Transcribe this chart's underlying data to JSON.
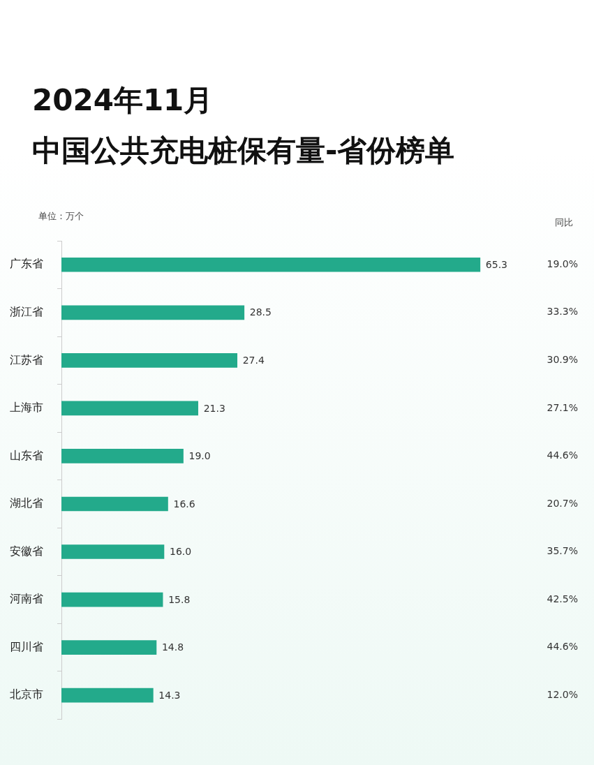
{
  "chart_data": {
    "type": "bar",
    "orientation": "horizontal",
    "title": "2024年11月",
    "subtitle": "中国公共充电桩保有量-省份榜单",
    "categories": [
      "广东省",
      "浙江省",
      "江苏省",
      "上海市",
      "山东省",
      "湖北省",
      "安徽省",
      "河南省",
      "四川省",
      "北京市"
    ],
    "values": [
      65.3,
      28.5,
      27.4,
      21.3,
      19.0,
      16.6,
      16.0,
      15.8,
      14.8,
      14.3
    ],
    "value_labels": [
      "65.3",
      "28.5",
      "27.4",
      "21.3",
      "19.0",
      "16.6",
      "16.0",
      "15.8",
      "14.8",
      "14.3"
    ],
    "color": "#23aa8b",
    "grid": false,
    "legend": false,
    "tick_labels": "y",
    "annotations": [
      "单位：万个",
      "同比",
      "19.0%",
      "33.3%",
      "30.9%",
      "27.1%",
      "44.6%",
      "20.7%",
      "35.7%",
      "42.5%",
      "44.6%",
      "12.0%"
    ]
  }
}
